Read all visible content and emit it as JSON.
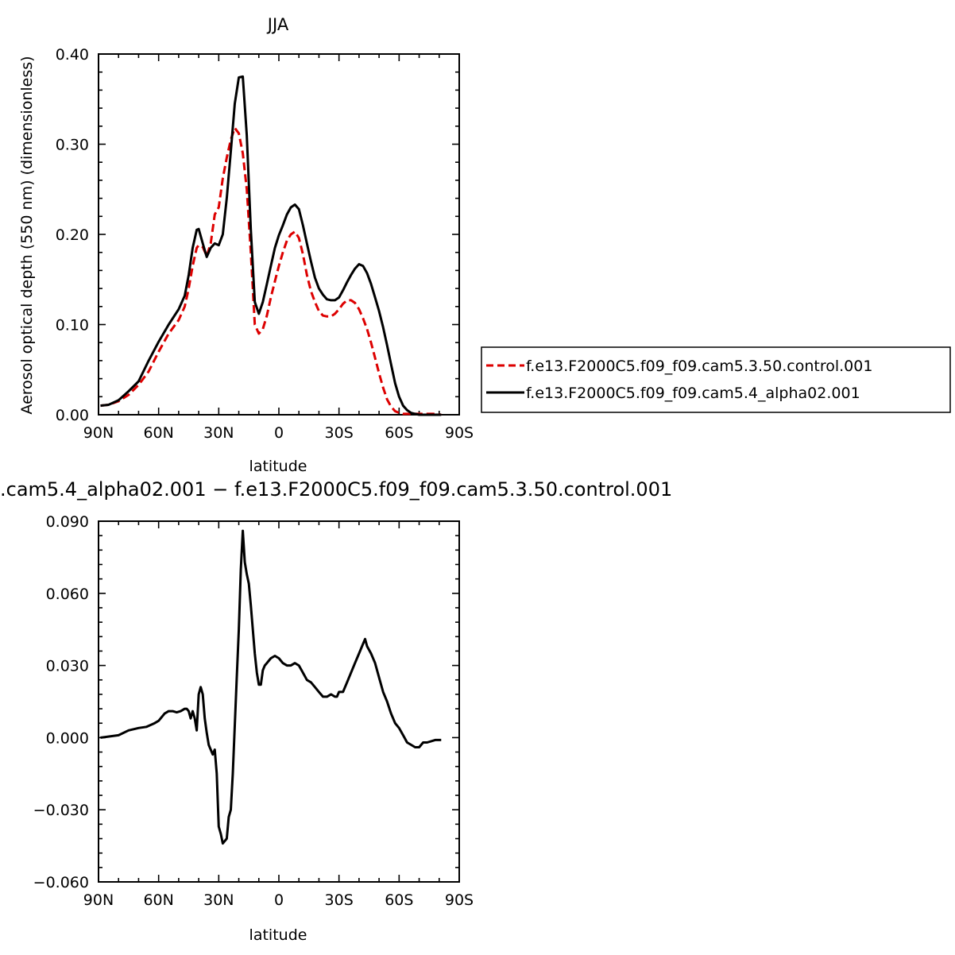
{
  "chart_data": [
    {
      "type": "line",
      "title": "JJA",
      "xlabel": "latitude",
      "ylabel": "Aerosol optical depth (550 nm) (dimensionless)",
      "x_axis": {
        "range": [
          90,
          -90
        ],
        "ticks": [
          90,
          60,
          30,
          0,
          -30,
          -60,
          -90
        ],
        "tick_labels": [
          "90N",
          "60N",
          "30N",
          "0",
          "30S",
          "60S",
          "90S"
        ]
      },
      "y_axis": {
        "range": [
          0,
          0.4
        ],
        "ticks": [
          0,
          0.1,
          0.2,
          0.3,
          0.4
        ],
        "tick_labels": [
          "0.00",
          "0.10",
          "0.20",
          "0.30",
          "0.40"
        ]
      },
      "grid": false,
      "legend_position": "right",
      "series": [
        {
          "name": "f.e13.F2000C5.f09_f09.cam5.3.50.control.001",
          "color": "#dd0000",
          "dash": "dashed",
          "x": [
            89,
            85,
            80,
            75,
            70,
            65,
            60,
            55,
            50,
            47,
            45,
            43,
            41,
            40,
            38,
            36,
            34,
            32,
            30,
            28,
            26,
            24,
            22,
            20,
            18,
            16,
            14,
            12,
            10,
            8,
            6,
            4,
            2,
            0,
            -2,
            -4,
            -6,
            -8,
            -10,
            -12,
            -14,
            -16,
            -18,
            -20,
            -22,
            -24,
            -26,
            -28,
            -30,
            -32,
            -34,
            -36,
            -38,
            -40,
            -42,
            -44,
            -46,
            -48,
            -50,
            -52,
            -54,
            -56,
            -58,
            -60,
            -62,
            -64,
            -66,
            -68,
            -70,
            -72,
            -75,
            -78,
            -81
          ],
          "y": [
            0.01,
            0.011,
            0.015,
            0.022,
            0.033,
            0.048,
            0.07,
            0.09,
            0.105,
            0.12,
            0.14,
            0.165,
            0.185,
            0.188,
            0.186,
            0.176,
            0.19,
            0.222,
            0.23,
            0.262,
            0.285,
            0.305,
            0.318,
            0.312,
            0.29,
            0.25,
            0.18,
            0.1,
            0.09,
            0.095,
            0.11,
            0.13,
            0.148,
            0.165,
            0.18,
            0.193,
            0.2,
            0.203,
            0.196,
            0.178,
            0.155,
            0.137,
            0.125,
            0.115,
            0.11,
            0.109,
            0.109,
            0.112,
            0.117,
            0.123,
            0.127,
            0.127,
            0.124,
            0.117,
            0.107,
            0.095,
            0.08,
            0.063,
            0.046,
            0.03,
            0.017,
            0.009,
            0.004,
            0.002,
            0.001,
            0.001,
            0.001,
            0.001,
            0.001,
            0.001,
            0.001,
            0.001,
            0.0
          ]
        },
        {
          "name": "f.e13.F2000C5.f09_f09.cam5.4_alpha02.001",
          "color": "#000000",
          "dash": "solid",
          "x": [
            89,
            85,
            80,
            75,
            70,
            65,
            60,
            55,
            50,
            47,
            45,
            43,
            41,
            40,
            38,
            36,
            34,
            32,
            30,
            28,
            26,
            24,
            22,
            20,
            18,
            16,
            14,
            12,
            10,
            8,
            6,
            4,
            2,
            0,
            -2,
            -4,
            -6,
            -8,
            -10,
            -12,
            -14,
            -16,
            -18,
            -20,
            -22,
            -24,
            -26,
            -28,
            -30,
            -32,
            -34,
            -36,
            -38,
            -40,
            -42,
            -44,
            -46,
            -48,
            -50,
            -52,
            -54,
            -56,
            -58,
            -60,
            -62,
            -64,
            -66,
            -68,
            -70,
            -72,
            -75,
            -78,
            -81
          ],
          "y": [
            0.01,
            0.011,
            0.016,
            0.026,
            0.037,
            0.06,
            0.081,
            0.1,
            0.117,
            0.132,
            0.155,
            0.185,
            0.205,
            0.206,
            0.19,
            0.175,
            0.185,
            0.19,
            0.188,
            0.2,
            0.24,
            0.292,
            0.345,
            0.374,
            0.375,
            0.31,
            0.205,
            0.125,
            0.112,
            0.125,
            0.145,
            0.165,
            0.185,
            0.199,
            0.21,
            0.222,
            0.23,
            0.233,
            0.228,
            0.21,
            0.19,
            0.17,
            0.152,
            0.14,
            0.133,
            0.128,
            0.127,
            0.127,
            0.13,
            0.138,
            0.147,
            0.155,
            0.162,
            0.167,
            0.165,
            0.157,
            0.145,
            0.13,
            0.115,
            0.097,
            0.077,
            0.056,
            0.035,
            0.02,
            0.01,
            0.005,
            0.002,
            0.001,
            0.0,
            0.0,
            0.0,
            0.0,
            0.0
          ]
        }
      ]
    },
    {
      "type": "line",
      "title": ".cam5.4_alpha02.001 − f.e13.F2000C5.f09_f09.cam5.3.50.control.001",
      "xlabel": "latitude",
      "ylabel": "",
      "x_axis": {
        "range": [
          90,
          -90
        ],
        "ticks": [
          90,
          60,
          30,
          0,
          -30,
          -60,
          -90
        ],
        "tick_labels": [
          "90N",
          "60N",
          "30N",
          "0",
          "30S",
          "60S",
          "90S"
        ]
      },
      "y_axis": {
        "range": [
          -0.06,
          0.09
        ],
        "ticks": [
          -0.06,
          -0.03,
          0.0,
          0.03,
          0.06,
          0.09
        ],
        "tick_labels": [
          "−0.060",
          "−0.030",
          "0.000",
          "0.030",
          "0.060",
          "0.090"
        ]
      },
      "grid": false,
      "series": [
        {
          "color": "#000000",
          "dash": "solid",
          "x": [
            89,
            80,
            75,
            70,
            66,
            62,
            60,
            57,
            55,
            53,
            51,
            49,
            47,
            46,
            45,
            44,
            43,
            42,
            41,
            40,
            39,
            38,
            37,
            36,
            35,
            34,
            33,
            32,
            31,
            30,
            29,
            28,
            27,
            26,
            25,
            24,
            23,
            22,
            21,
            20,
            19,
            18,
            17,
            16,
            15,
            14,
            13,
            12,
            11,
            10,
            9,
            8,
            7,
            6,
            5,
            4,
            2,
            0,
            -2,
            -4,
            -6,
            -8,
            -10,
            -12,
            -14,
            -16,
            -18,
            -20,
            -22,
            -24,
            -26,
            -28,
            -29,
            -30,
            -32,
            -34,
            -36,
            -38,
            -40,
            -42,
            -43,
            -44,
            -46,
            -48,
            -50,
            -52,
            -54,
            -56,
            -58,
            -60,
            -62,
            -64,
            -66,
            -68,
            -70,
            -72,
            -73,
            -74,
            -78,
            -81
          ],
          "y": [
            0.0,
            0.001,
            0.003,
            0.004,
            0.0045,
            0.006,
            0.007,
            0.01,
            0.011,
            0.011,
            0.0105,
            0.011,
            0.012,
            0.012,
            0.011,
            0.008,
            0.011,
            0.008,
            0.003,
            0.018,
            0.021,
            0.018,
            0.008,
            0.002,
            -0.003,
            -0.005,
            -0.007,
            -0.005,
            -0.015,
            -0.037,
            -0.04,
            -0.044,
            -0.043,
            -0.042,
            -0.033,
            -0.03,
            -0.015,
            0.005,
            0.025,
            0.045,
            0.07,
            0.086,
            0.073,
            0.068,
            0.064,
            0.055,
            0.045,
            0.035,
            0.027,
            0.022,
            0.022,
            0.028,
            0.03,
            0.031,
            0.032,
            0.033,
            0.034,
            0.033,
            0.031,
            0.03,
            0.03,
            0.031,
            0.03,
            0.027,
            0.024,
            0.023,
            0.021,
            0.019,
            0.017,
            0.017,
            0.018,
            0.017,
            0.017,
            0.019,
            0.019,
            0.023,
            0.027,
            0.031,
            0.035,
            0.039,
            0.041,
            0.038,
            0.035,
            0.031,
            0.025,
            0.019,
            0.015,
            0.01,
            0.006,
            0.004,
            0.001,
            -0.002,
            -0.003,
            -0.004,
            -0.004,
            -0.002,
            -0.002,
            -0.002,
            -0.001,
            -0.001
          ]
        }
      ]
    }
  ]
}
